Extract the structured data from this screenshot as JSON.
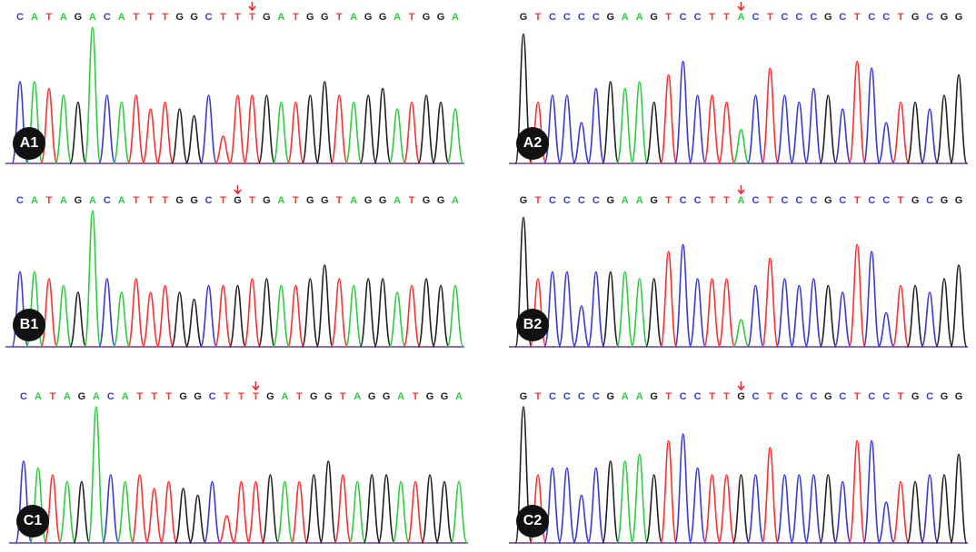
{
  "colors": {
    "A": "#2ecc40",
    "C": "#3a3ad8",
    "G": "#222222",
    "T": "#ff3030",
    "arrow": "#ff2020"
  },
  "panels": [
    {
      "id": "A1",
      "label": "A1",
      "sequence": "CATAGACATTTGGCTTTGATGGTAGGATGGA",
      "variant_index": 16,
      "variant_base": "T",
      "peak_heights": [
        0.6,
        0.6,
        0.55,
        0.5,
        0.45,
        1.0,
        0.5,
        0.45,
        0.5,
        0.4,
        0.45,
        0.4,
        0.35,
        0.5,
        0.2,
        0.5,
        0.5,
        0.5,
        0.45,
        0.45,
        0.5,
        0.6,
        0.5,
        0.45,
        0.5,
        0.55,
        0.4,
        0.45,
        0.5,
        0.45,
        0.4
      ]
    },
    {
      "id": "A2",
      "label": "A2",
      "sequence": "GTCCCCGAAGTCCTTACTCCCGCTCCTGCGG",
      "variant_index": 15,
      "variant_base": "A",
      "peak_heights": [
        0.95,
        0.45,
        0.5,
        0.5,
        0.3,
        0.55,
        0.6,
        0.55,
        0.6,
        0.45,
        0.65,
        0.75,
        0.5,
        0.5,
        0.45,
        0.25,
        0.5,
        0.7,
        0.5,
        0.45,
        0.55,
        0.5,
        0.4,
        0.75,
        0.7,
        0.3,
        0.45,
        0.45,
        0.4,
        0.5,
        0.65
      ]
    },
    {
      "id": "B1",
      "label": "B1",
      "sequence": "CATAGACATTTGGCTGTGATGGTAGGATGGA",
      "variant_index": 15,
      "variant_base": "G",
      "peak_heights": [
        0.55,
        0.55,
        0.5,
        0.45,
        0.4,
        1.0,
        0.5,
        0.4,
        0.5,
        0.4,
        0.45,
        0.4,
        0.35,
        0.45,
        0.45,
        0.45,
        0.5,
        0.5,
        0.45,
        0.45,
        0.5,
        0.6,
        0.5,
        0.45,
        0.5,
        0.5,
        0.4,
        0.45,
        0.5,
        0.45,
        0.45
      ]
    },
    {
      "id": "B2",
      "label": "B2",
      "sequence": "GTCCCCGAAGTCCTTACTCCCGCTCCTGCGG",
      "variant_index": 15,
      "variant_base": "A",
      "peak_heights": [
        0.95,
        0.5,
        0.55,
        0.55,
        0.3,
        0.55,
        0.55,
        0.55,
        0.5,
        0.5,
        0.7,
        0.75,
        0.5,
        0.5,
        0.5,
        0.2,
        0.45,
        0.65,
        0.5,
        0.45,
        0.5,
        0.45,
        0.4,
        0.75,
        0.7,
        0.25,
        0.45,
        0.45,
        0.4,
        0.5,
        0.6
      ]
    },
    {
      "id": "C1",
      "label": "C1",
      "sequence": "CATAGACATTTGGCTTTGATGGTAGGATGGA",
      "variant_index": 16,
      "variant_base": "T",
      "peak_heights": [
        0.6,
        0.55,
        0.5,
        0.45,
        0.45,
        1.0,
        0.5,
        0.45,
        0.5,
        0.4,
        0.45,
        0.4,
        0.35,
        0.45,
        0.2,
        0.45,
        0.45,
        0.5,
        0.45,
        0.45,
        0.5,
        0.6,
        0.5,
        0.45,
        0.5,
        0.5,
        0.45,
        0.45,
        0.5,
        0.45,
        0.45
      ]
    },
    {
      "id": "C2",
      "label": "C2",
      "sequence": "GTCCCCGAAGTCCTTGCTCCCGCTCCTGCGG",
      "variant_index": 15,
      "variant_base": "G",
      "peak_heights": [
        1.0,
        0.5,
        0.55,
        0.55,
        0.35,
        0.55,
        0.6,
        0.6,
        0.65,
        0.5,
        0.75,
        0.8,
        0.55,
        0.5,
        0.5,
        0.5,
        0.5,
        0.7,
        0.5,
        0.5,
        0.5,
        0.5,
        0.45,
        0.75,
        0.75,
        0.3,
        0.45,
        0.45,
        0.5,
        0.5,
        0.65
      ]
    }
  ]
}
